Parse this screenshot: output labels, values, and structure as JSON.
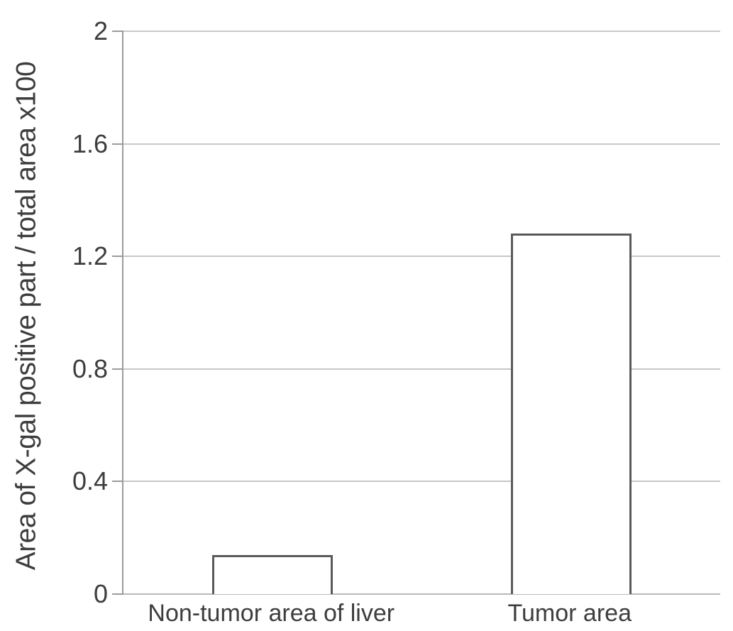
{
  "chart_data": {
    "type": "bar",
    "categories": [
      "Non-tumor area of liver",
      "Tumor area"
    ],
    "values": [
      0.14,
      1.28
    ],
    "ylabel": "Area of X-gal positive part / total area x100",
    "xlabel": "",
    "ylim": [
      0,
      2
    ],
    "yticks": [
      0,
      0.4,
      0.8,
      1.2,
      1.6,
      2
    ],
    "ytick_labels": [
      "0",
      "0.4",
      "0.8",
      "1.2",
      "1.6",
      "2"
    ],
    "grid": true,
    "legend": "none",
    "bar_fill_color": "#ffffff",
    "bar_border_color": "#5a5a5a",
    "gridline_color": "#c8c8c8",
    "axis_color": "#9b9b9b",
    "text_color": "#3d3d3d"
  }
}
